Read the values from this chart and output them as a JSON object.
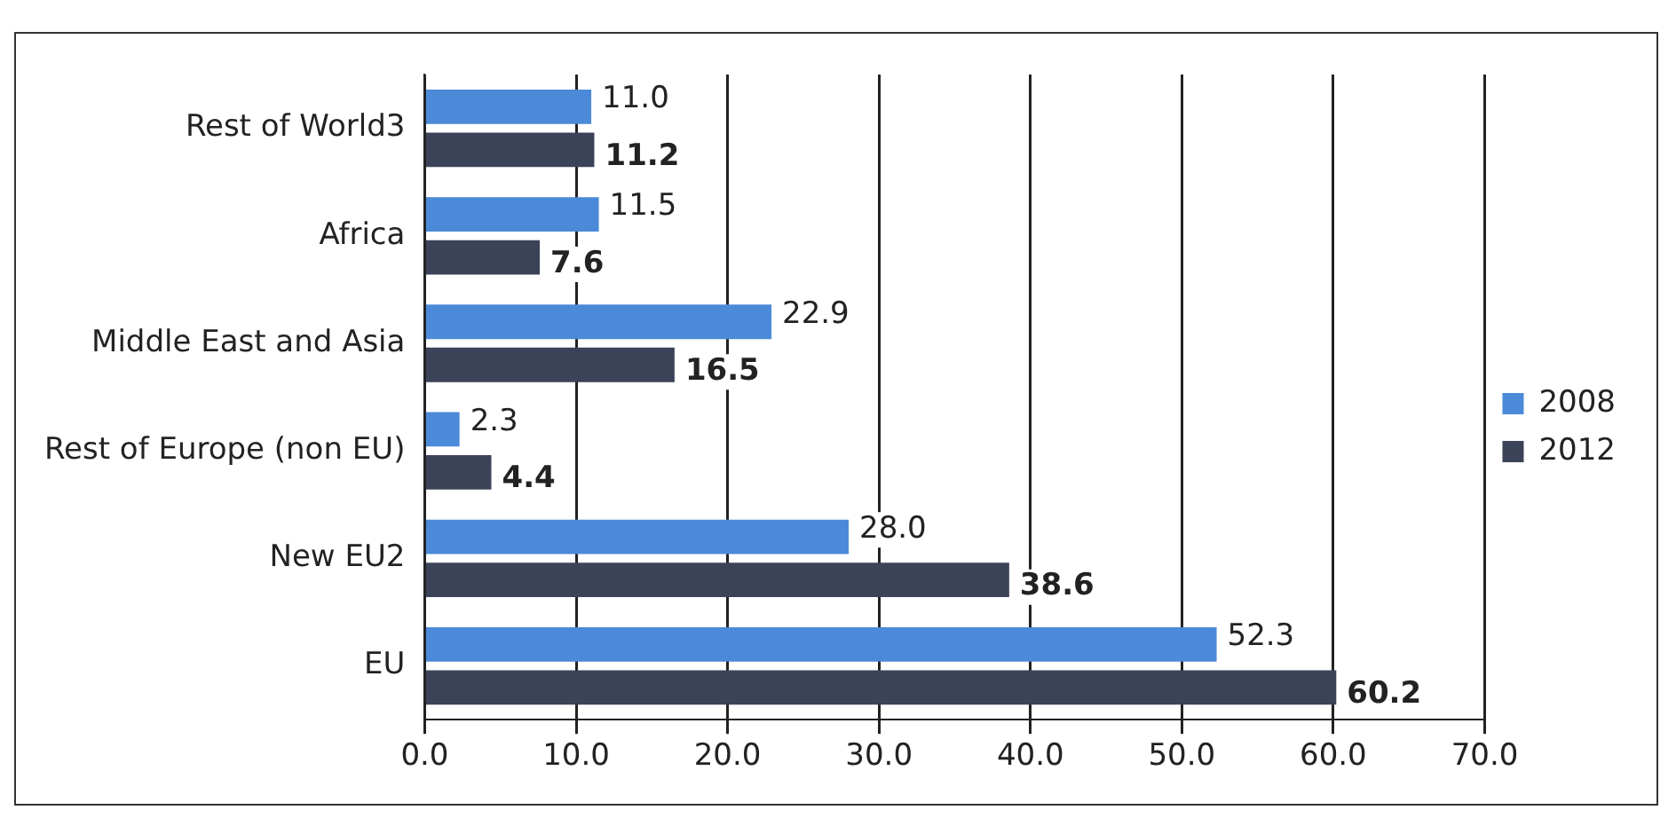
{
  "chart_data": {
    "type": "bar",
    "orientation": "horizontal",
    "categories": [
      "Rest of World3",
      "Africa",
      "Middle East and Asia",
      "Rest of Europe (non EU)",
      "New EU2",
      "EU"
    ],
    "series": [
      {
        "name": "2008",
        "color": "#4a8ad8",
        "values": [
          11.0,
          11.5,
          22.9,
          2.3,
          28.0,
          52.3
        ],
        "value_labels": [
          "11.0",
          "11.5",
          "22.9",
          "2.3",
          "28.0",
          "52.3"
        ]
      },
      {
        "name": "2012",
        "color": "#3b4358",
        "values": [
          11.2,
          7.6,
          16.5,
          4.4,
          38.6,
          60.2
        ],
        "value_labels": [
          "11.2",
          "7.6",
          "16.5",
          "4.4",
          "38.6",
          "60.2"
        ]
      }
    ],
    "xlim": [
      0,
      70
    ],
    "xticks": [
      {
        "value": 0,
        "label": "0.0"
      },
      {
        "value": 10,
        "label": "10.0"
      },
      {
        "value": 20,
        "label": "20.0"
      },
      {
        "value": 30,
        "label": "30.0"
      },
      {
        "value": 40,
        "label": "40.0"
      },
      {
        "value": 50,
        "label": "50.0"
      },
      {
        "value": 60,
        "label": "60.0"
      },
      {
        "value": 70,
        "label": "70.0"
      }
    ],
    "grid": "x",
    "legend": "right"
  }
}
